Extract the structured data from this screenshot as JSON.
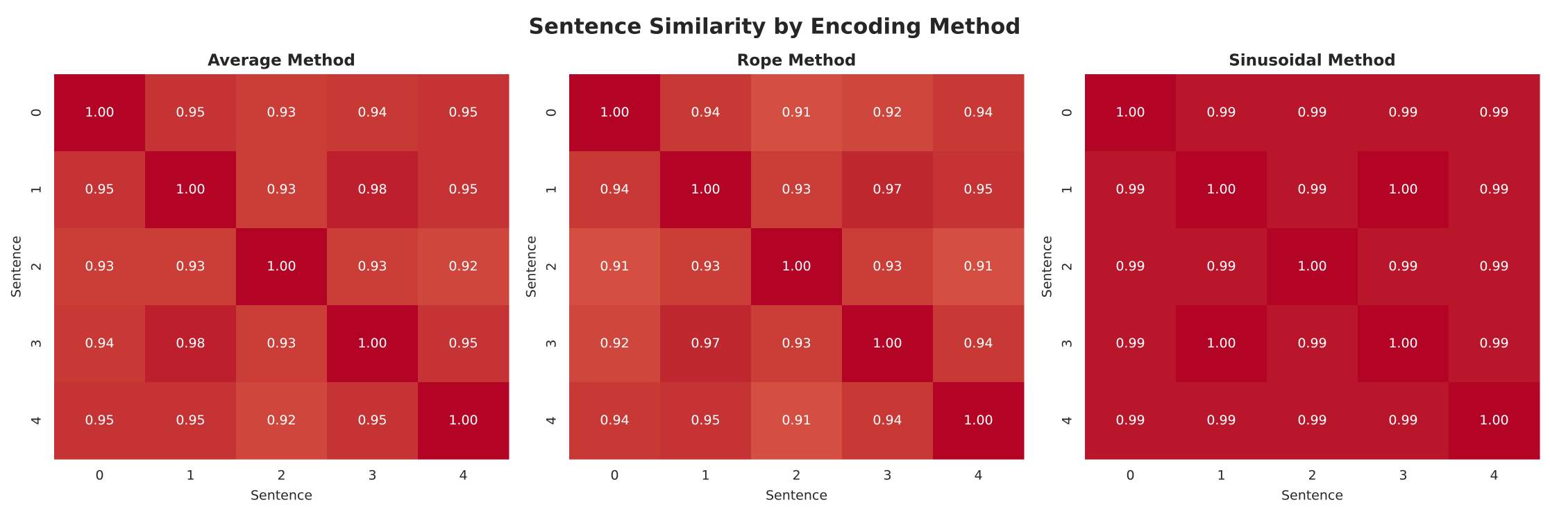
{
  "title": "Sentence Similarity by Encoding Method",
  "chart_data": [
    {
      "type": "heatmap",
      "title": "Average Method",
      "xlabel": "Sentence",
      "ylabel": "Sentence",
      "x_ticks": [
        "0",
        "1",
        "2",
        "3",
        "4"
      ],
      "y_ticks": [
        "0",
        "1",
        "2",
        "3",
        "4"
      ],
      "colormap": "coolwarm",
      "colorbar": false,
      "values": [
        [
          1.0,
          0.95,
          0.93,
          0.94,
          0.95
        ],
        [
          0.95,
          1.0,
          0.93,
          0.98,
          0.95
        ],
        [
          0.93,
          0.93,
          1.0,
          0.93,
          0.92
        ],
        [
          0.94,
          0.98,
          0.93,
          1.0,
          0.95
        ],
        [
          0.95,
          0.95,
          0.92,
          0.95,
          1.0
        ]
      ]
    },
    {
      "type": "heatmap",
      "title": "Rope Method",
      "xlabel": "Sentence",
      "ylabel": "Sentence",
      "x_ticks": [
        "0",
        "1",
        "2",
        "3",
        "4"
      ],
      "y_ticks": [
        "0",
        "1",
        "2",
        "3",
        "4"
      ],
      "colormap": "coolwarm",
      "colorbar": false,
      "values": [
        [
          1.0,
          0.94,
          0.91,
          0.92,
          0.94
        ],
        [
          0.94,
          1.0,
          0.93,
          0.97,
          0.95
        ],
        [
          0.91,
          0.93,
          1.0,
          0.93,
          0.91
        ],
        [
          0.92,
          0.97,
          0.93,
          1.0,
          0.94
        ],
        [
          0.94,
          0.95,
          0.91,
          0.94,
          1.0
        ]
      ]
    },
    {
      "type": "heatmap",
      "title": "Sinusoidal Method",
      "xlabel": "Sentence",
      "ylabel": "Sentence",
      "x_ticks": [
        "0",
        "1",
        "2",
        "3",
        "4"
      ],
      "y_ticks": [
        "0",
        "1",
        "2",
        "3",
        "4"
      ],
      "colormap": "coolwarm",
      "colorbar": false,
      "values": [
        [
          1.0,
          0.99,
          0.99,
          0.99,
          0.99
        ],
        [
          0.99,
          1.0,
          0.99,
          1.0,
          0.99
        ],
        [
          0.99,
          0.99,
          1.0,
          0.99,
          0.99
        ],
        [
          0.99,
          1.0,
          0.99,
          1.0,
          0.99
        ],
        [
          0.99,
          0.99,
          0.99,
          0.99,
          1.0
        ]
      ]
    }
  ]
}
